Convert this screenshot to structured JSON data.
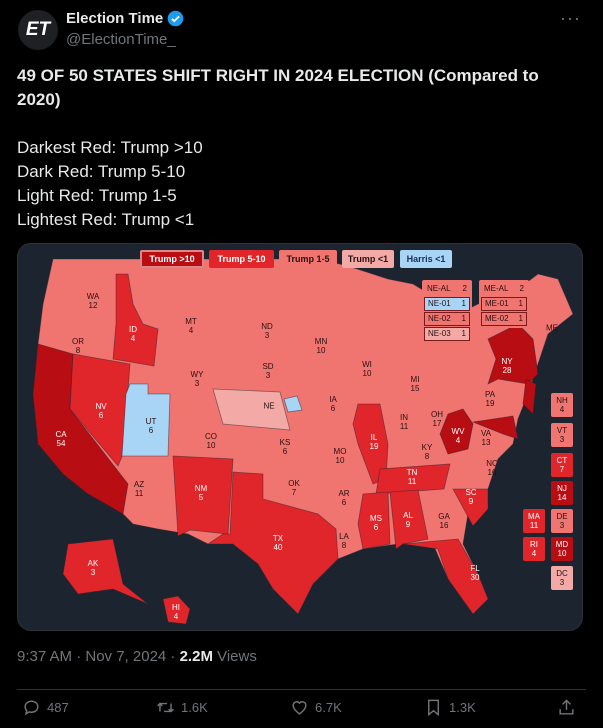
{
  "author": {
    "name": "Election Time",
    "handle": "@ElectionTime_",
    "avatar_text": "ET",
    "verified": true
  },
  "tweet": {
    "title": "49 OF 50 STATES SHIFT RIGHT IN 2024 ELECTION (Compared to 2020)",
    "lines": [
      "Darkest Red: Trump >10",
      "Dark Red: Trump 5-10",
      "Light Red: Trump 1-5",
      "Lightest Red: Trump <1"
    ]
  },
  "colors": {
    "trump_gt10": "#b80d12",
    "trump_5_10": "#e0262a",
    "trump_1_5": "#f07470",
    "trump_lt1": "#f3a9a6",
    "harris_lt1": "#a8d4f5",
    "map_bg": "#1c2430"
  },
  "legend": [
    "Trump >10",
    "Trump 5-10",
    "Trump 1-5",
    "Trump <1",
    "Harris <1"
  ],
  "states": [
    {
      "s": "WA",
      "v": "12"
    },
    {
      "s": "OR",
      "v": "8"
    },
    {
      "s": "CA",
      "v": "54"
    },
    {
      "s": "NV",
      "v": "6"
    },
    {
      "s": "ID",
      "v": "4"
    },
    {
      "s": "MT",
      "v": "4"
    },
    {
      "s": "WY",
      "v": "3"
    },
    {
      "s": "UT",
      "v": "6"
    },
    {
      "s": "CO",
      "v": "10"
    },
    {
      "s": "AZ",
      "v": "11"
    },
    {
      "s": "NM",
      "v": "5"
    },
    {
      "s": "ND",
      "v": "3"
    },
    {
      "s": "SD",
      "v": "3"
    },
    {
      "s": "NE",
      "v": ""
    },
    {
      "s": "KS",
      "v": "6"
    },
    {
      "s": "OK",
      "v": "7"
    },
    {
      "s": "TX",
      "v": "40"
    },
    {
      "s": "MN",
      "v": "10"
    },
    {
      "s": "IA",
      "v": "6"
    },
    {
      "s": "MO",
      "v": "10"
    },
    {
      "s": "AR",
      "v": "6"
    },
    {
      "s": "LA",
      "v": "8"
    },
    {
      "s": "WI",
      "v": "10"
    },
    {
      "s": "IL",
      "v": "19"
    },
    {
      "s": "MI",
      "v": "15"
    },
    {
      "s": "IN",
      "v": "11"
    },
    {
      "s": "KY",
      "v": "8"
    },
    {
      "s": "TN",
      "v": "11"
    },
    {
      "s": "MS",
      "v": "6"
    },
    {
      "s": "AL",
      "v": "9"
    },
    {
      "s": "GA",
      "v": "16"
    },
    {
      "s": "FL",
      "v": "30"
    },
    {
      "s": "SC",
      "v": "9"
    },
    {
      "s": "NC",
      "v": "16"
    },
    {
      "s": "VA",
      "v": "13"
    },
    {
      "s": "WV",
      "v": "4"
    },
    {
      "s": "OH",
      "v": "17"
    },
    {
      "s": "PA",
      "v": "19"
    },
    {
      "s": "NY",
      "v": "28"
    },
    {
      "s": "ME",
      "v": ""
    },
    {
      "s": "AK",
      "v": "3"
    },
    {
      "s": "HI",
      "v": "4"
    }
  ],
  "small_states": [
    {
      "s": "NH",
      "v": "4"
    },
    {
      "s": "VT",
      "v": "3"
    },
    {
      "s": "CT",
      "v": "7"
    },
    {
      "s": "NJ",
      "v": "14"
    },
    {
      "s": "DE",
      "v": "3"
    },
    {
      "s": "MD",
      "v": "10"
    },
    {
      "s": "DC",
      "v": "3"
    },
    {
      "s": "MA",
      "v": "11"
    },
    {
      "s": "RI",
      "v": "4"
    }
  ],
  "ne_districts": [
    {
      "d": "NE-AL",
      "v": "2"
    },
    {
      "d": "NE-01",
      "v": "1"
    },
    {
      "d": "NE-02",
      "v": "1"
    },
    {
      "d": "NE-03",
      "v": "1"
    }
  ],
  "me_districts": [
    {
      "d": "ME-AL",
      "v": "2"
    },
    {
      "d": "ME-01",
      "v": "1"
    },
    {
      "d": "ME-02",
      "v": "1"
    }
  ],
  "footer": {
    "time": "9:37 AM · Nov 7, 2024 · ",
    "views_count": "2.2M",
    "views_label": " Views"
  },
  "actions": {
    "replies": "487",
    "reposts": "1.6K",
    "likes": "6.7K",
    "bookmarks": "1.3K"
  }
}
